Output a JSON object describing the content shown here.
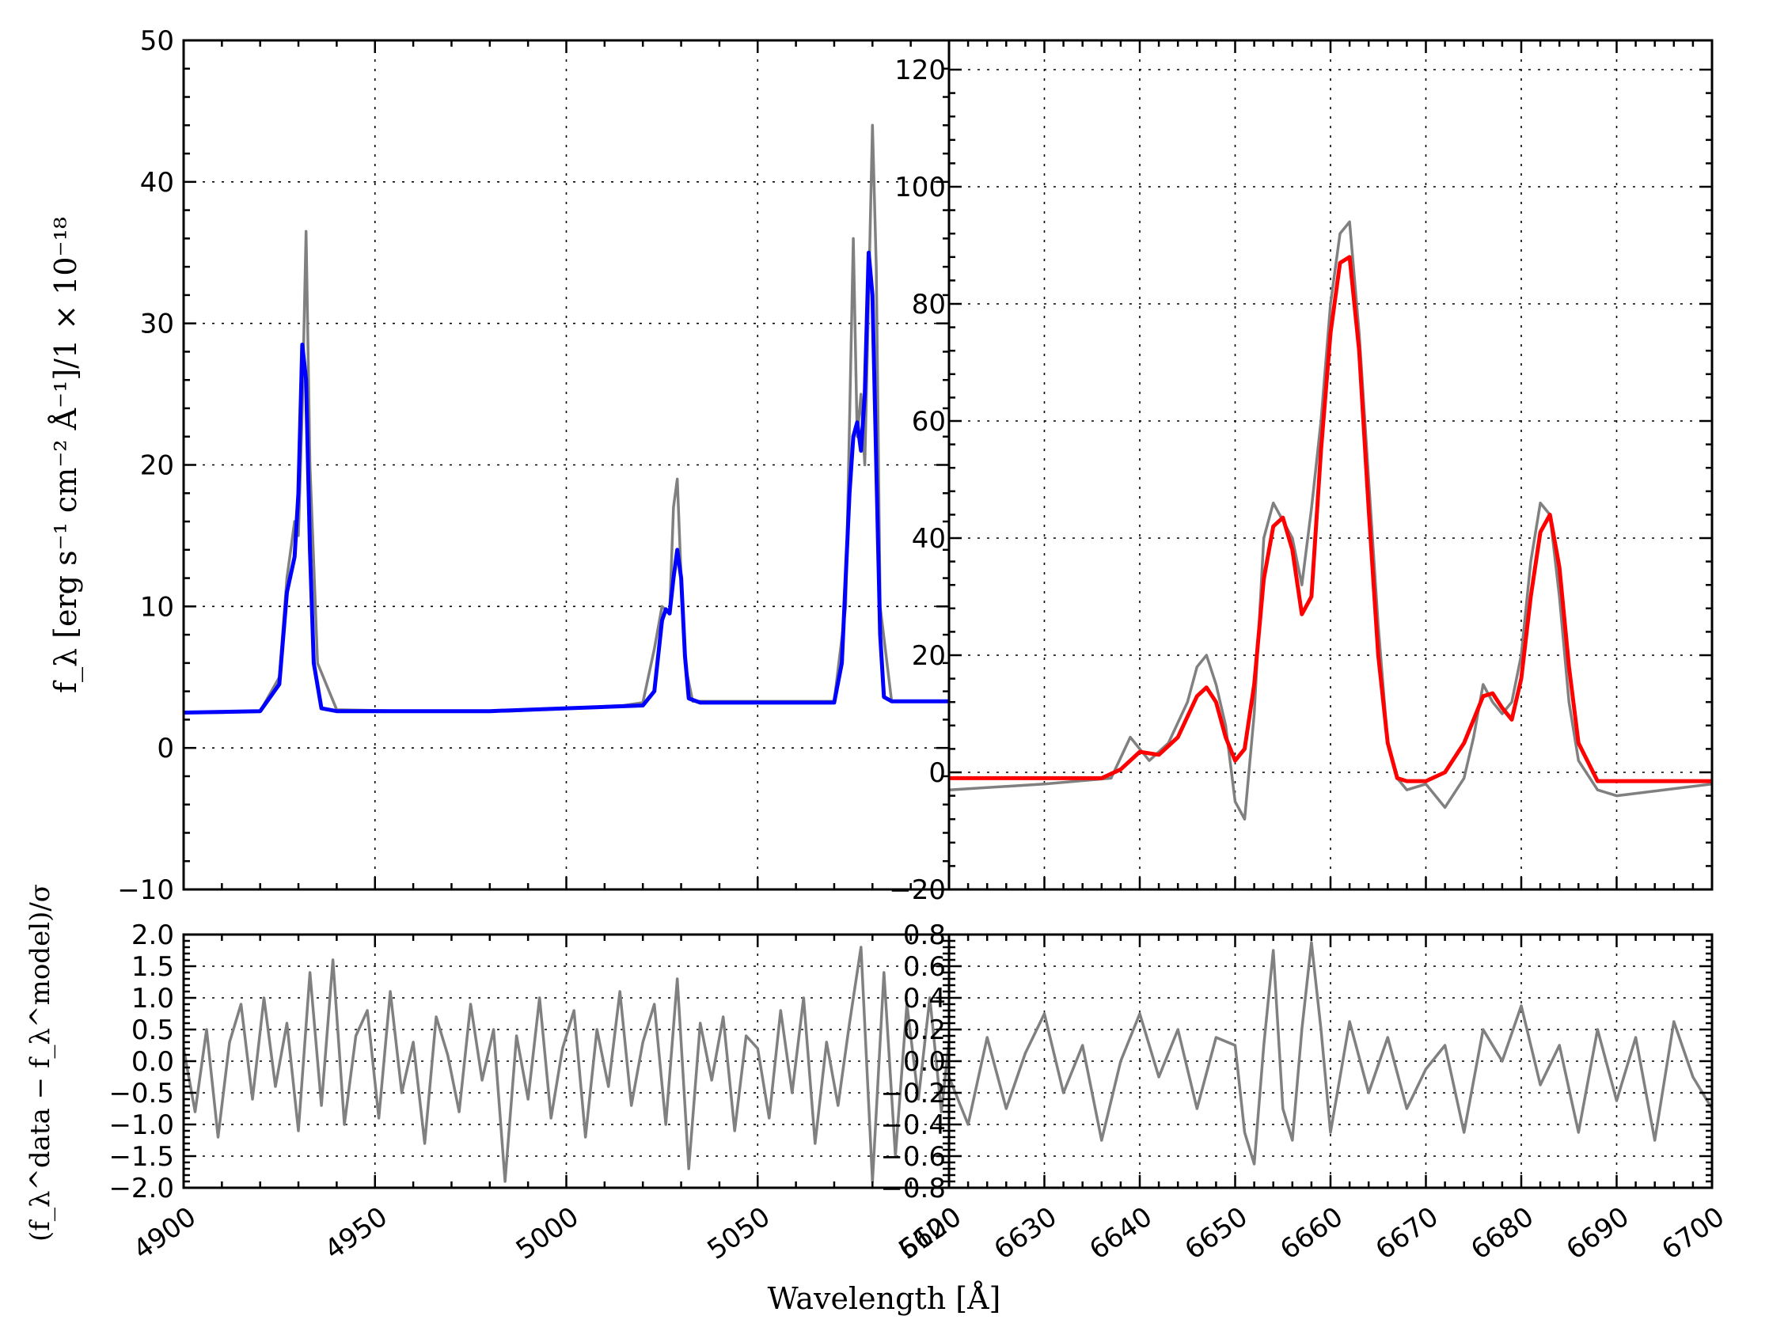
{
  "figure": {
    "xlabel": "Wavelength [Å]",
    "ylabel_top": "f_λ [erg s⁻¹ cm⁻² Å⁻¹]/1 × 10⁻¹⁸",
    "ylabel_bottom": "(f_λ^data − f_λ^model)/σ"
  },
  "colors": {
    "data": "#808080",
    "model_left": "#0000ff",
    "model_right": "#ff0000"
  },
  "chart_data": [
    {
      "id": "top-left",
      "type": "line",
      "xlim": [
        4900,
        5100
      ],
      "ylim": [
        -10,
        50
      ],
      "xticks": [
        4900,
        4950,
        5000,
        5050,
        5100
      ],
      "yticks": [
        -10,
        0,
        10,
        20,
        30,
        40,
        50
      ],
      "grid": true,
      "series": [
        {
          "role": "data",
          "x": [
            4900,
            4910,
            4920,
            4925,
            4927,
            4929,
            4930,
            4931,
            4932,
            4933,
            4935,
            4940,
            4960,
            4985,
            5000,
            5015,
            5020,
            5023,
            5025,
            5027,
            5028,
            5029,
            5030,
            5031,
            5033,
            5040,
            5060,
            5070,
            5073,
            5075,
            5076,
            5077,
            5078,
            5079,
            5080,
            5081,
            5082,
            5085,
            5100
          ],
          "y": [
            2.5,
            2.5,
            2.6,
            5,
            12,
            16,
            15,
            24,
            36.5,
            20,
            6,
            2.7,
            2.6,
            2.6,
            2.8,
            3.0,
            3.2,
            7,
            10,
            9.5,
            17,
            19,
            12,
            6,
            3.3,
            3.3,
            3.3,
            3.3,
            10,
            36,
            22,
            25,
            20,
            32,
            44,
            34,
            10,
            3.3,
            3.3
          ]
        },
        {
          "role": "model",
          "x": [
            4900,
            4920,
            4925,
            4927,
            4929,
            4930,
            4931,
            4932,
            4933,
            4934,
            4936,
            4940,
            4980,
            5000,
            5020,
            5023,
            5025,
            5026,
            5027,
            5028,
            5029,
            5030,
            5031,
            5032,
            5035,
            5060,
            5070,
            5072,
            5074,
            5075,
            5076,
            5077,
            5078,
            5079,
            5080,
            5081,
            5082,
            5083,
            5085,
            5100
          ],
          "y": [
            2.5,
            2.6,
            4.5,
            11,
            13.5,
            18,
            28.5,
            26,
            14,
            6,
            2.8,
            2.6,
            2.6,
            2.8,
            3.0,
            4,
            9,
            9.8,
            9.5,
            12,
            14,
            12,
            6.5,
            3.5,
            3.2,
            3.2,
            3.2,
            6,
            18,
            22,
            23,
            21,
            25,
            35,
            32,
            20,
            8,
            3.6,
            3.3,
            3.3
          ]
        }
      ]
    },
    {
      "id": "top-right",
      "type": "line",
      "xlim": [
        6620,
        6700
      ],
      "ylim": [
        -20,
        125
      ],
      "xticks": [
        6620,
        6630,
        6640,
        6650,
        6660,
        6670,
        6680,
        6690,
        6700
      ],
      "yticks": [
        -20,
        0,
        20,
        40,
        60,
        80,
        100,
        120
      ],
      "grid": true,
      "series": [
        {
          "role": "data",
          "x": [
            6620,
            6630,
            6637,
            6639,
            6641,
            6643,
            6645,
            6646,
            6647,
            6648,
            6649,
            6650,
            6651,
            6652,
            6653,
            6654,
            6655,
            6656,
            6657,
            6658,
            6659,
            6660,
            6661,
            6662,
            6663,
            6664,
            6665,
            6666,
            6667,
            6668,
            6670,
            6672,
            6674,
            6675,
            6676,
            6677,
            6678,
            6679,
            6680,
            6681,
            6682,
            6683,
            6684,
            6685,
            6686,
            6688,
            6690,
            6700
          ],
          "y": [
            -3,
            -2,
            -1,
            6,
            2,
            5,
            12,
            18,
            20,
            15,
            8,
            -5,
            -8,
            10,
            40,
            46,
            43,
            40,
            32,
            45,
            60,
            80,
            92,
            94,
            75,
            50,
            25,
            5,
            -1,
            -3,
            -2,
            -6,
            -1,
            6,
            15,
            12,
            10,
            12,
            20,
            36,
            46,
            44,
            30,
            12,
            2,
            -3,
            -4,
            -2
          ]
        },
        {
          "role": "model",
          "x": [
            6620,
            6636,
            6638,
            6640,
            6642,
            6644,
            6646,
            6647,
            6648,
            6649,
            6650,
            6651,
            6652,
            6653,
            6654,
            6655,
            6656,
            6657,
            6658,
            6659,
            6660,
            6661,
            6662,
            6663,
            6664,
            6665,
            6666,
            6667,
            6668,
            6670,
            6672,
            6674,
            6675,
            6676,
            6677,
            6678,
            6679,
            6680,
            6681,
            6682,
            6683,
            6684,
            6685,
            6686,
            6688,
            6700
          ],
          "y": [
            -1,
            -1,
            0.5,
            3.5,
            3,
            6,
            13,
            14.5,
            12,
            6,
            2,
            4,
            15,
            33,
            42,
            43.5,
            38,
            27,
            30,
            55,
            75,
            87,
            88,
            72,
            45,
            20,
            5,
            -1,
            -1.5,
            -1.5,
            0,
            5,
            9,
            13,
            13.5,
            11,
            9,
            16,
            30,
            41,
            44,
            35,
            18,
            5,
            -1.5,
            -1.5
          ]
        }
      ]
    },
    {
      "id": "bottom-left",
      "type": "line",
      "xlim": [
        4900,
        5100
      ],
      "ylim": [
        -2.0,
        2.0
      ],
      "xticks": [
        4900,
        4950,
        5000,
        5050,
        5100
      ],
      "yticks": [
        -2.0,
        -1.5,
        -1.0,
        -0.5,
        0.0,
        0.5,
        1.0,
        1.5,
        2.0
      ],
      "xticklabels": [
        "4900",
        "4950",
        "5000",
        "5050",
        "5100"
      ],
      "grid": true,
      "series": [
        {
          "role": "residual",
          "x": [
            4900,
            4903,
            4906,
            4909,
            4912,
            4915,
            4918,
            4921,
            4924,
            4927,
            4930,
            4933,
            4936,
            4939,
            4942,
            4945,
            4948,
            4951,
            4954,
            4957,
            4960,
            4963,
            4966,
            4969,
            4972,
            4975,
            4978,
            4981,
            4984,
            4987,
            4990,
            4993,
            4996,
            4999,
            5002,
            5005,
            5008,
            5011,
            5014,
            5017,
            5020,
            5023,
            5026,
            5029,
            5032,
            5035,
            5038,
            5041,
            5044,
            5047,
            5050,
            5053,
            5056,
            5059,
            5062,
            5065,
            5068,
            5071,
            5074,
            5077,
            5080,
            5083,
            5086,
            5089,
            5092,
            5095,
            5098,
            5100
          ],
          "y": [
            0.2,
            -0.8,
            0.5,
            -1.2,
            0.3,
            0.9,
            -0.6,
            1.0,
            -0.4,
            0.6,
            -1.1,
            1.4,
            -0.7,
            1.6,
            -1.0,
            0.4,
            0.8,
            -0.9,
            1.1,
            -0.5,
            0.3,
            -1.3,
            0.7,
            0.1,
            -0.8,
            0.9,
            -0.3,
            0.5,
            -1.9,
            0.4,
            -0.6,
            1.0,
            -0.9,
            0.2,
            0.8,
            -1.2,
            0.5,
            -0.4,
            1.1,
            -0.7,
            0.3,
            0.9,
            -1.0,
            1.3,
            -1.7,
            0.6,
            -0.3,
            0.7,
            -1.1,
            0.4,
            0.2,
            -0.9,
            0.8,
            -0.5,
            1.0,
            -1.3,
            0.3,
            -0.7,
            0.6,
            1.8,
            -1.9,
            1.4,
            -1.5,
            0.9,
            -0.6,
            1.0,
            -0.8,
            0.3
          ]
        }
      ]
    },
    {
      "id": "bottom-right",
      "type": "line",
      "xlim": [
        6620,
        6700
      ],
      "ylim": [
        -0.8,
        0.8
      ],
      "xticks": [
        6620,
        6630,
        6640,
        6650,
        6660,
        6670,
        6680,
        6690,
        6700
      ],
      "yticks": [
        -0.8,
        -0.6,
        -0.4,
        -0.2,
        0.0,
        0.2,
        0.4,
        0.6,
        0.8
      ],
      "xticklabels": [
        "6620",
        "6630",
        "6640",
        "6650",
        "6660",
        "6670",
        "6680",
        "6690",
        "6700"
      ],
      "grid": true,
      "series": [
        {
          "role": "residual",
          "x": [
            6620,
            6622,
            6624,
            6626,
            6628,
            6630,
            6632,
            6634,
            6636,
            6638,
            6640,
            6642,
            6644,
            6646,
            6648,
            6650,
            6651,
            6652,
            6653,
            6654,
            6655,
            6656,
            6657,
            6658,
            6659,
            6660,
            6662,
            6664,
            6666,
            6668,
            6670,
            6672,
            6674,
            6676,
            6678,
            6680,
            6682,
            6684,
            6686,
            6688,
            6690,
            6692,
            6694,
            6696,
            6698,
            6700
          ],
          "y": [
            -0.1,
            -0.4,
            0.15,
            -0.3,
            0.05,
            0.3,
            -0.2,
            0.1,
            -0.5,
            0.0,
            0.3,
            -0.1,
            0.2,
            -0.3,
            0.15,
            0.1,
            -0.45,
            -0.65,
            0.1,
            0.7,
            -0.3,
            -0.5,
            0.2,
            0.75,
            0.2,
            -0.45,
            0.25,
            -0.2,
            0.15,
            -0.3,
            -0.05,
            0.1,
            -0.45,
            0.2,
            0.0,
            0.35,
            -0.15,
            0.1,
            -0.45,
            0.2,
            -0.25,
            0.15,
            -0.5,
            0.25,
            -0.1,
            -0.3
          ]
        }
      ]
    }
  ]
}
